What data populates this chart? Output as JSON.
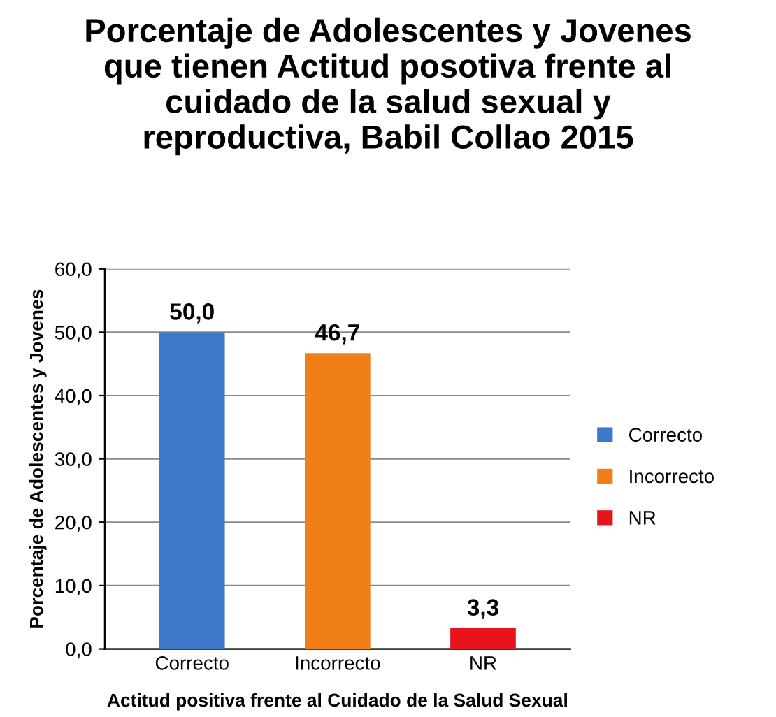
{
  "chart_data": {
    "type": "bar",
    "title": "Porcentaje de Adolescentes y Jovenes\nque tienen Actitud posotiva frente al\ncuidado de la salud sexual y\nreproductiva, Babil Collao 2015",
    "xlabel": "Actitud positiva frente al Cuidado de la Salud Sexual",
    "ylabel": "Porcentaje de Adolescentes y Jovenes",
    "categories": [
      "Correcto",
      "Incorrecto",
      "NR"
    ],
    "series": [
      {
        "name": "Correcto",
        "color": "#3f78c8",
        "values": [
          50.0,
          null,
          null
        ],
        "value_labels": [
          "50,0",
          null,
          null
        ]
      },
      {
        "name": "Incorrecto",
        "color": "#f07f18",
        "values": [
          null,
          46.7,
          null
        ],
        "value_labels": [
          null,
          "46,7",
          null
        ]
      },
      {
        "name": "NR",
        "color": "#e8141c",
        "values": [
          null,
          null,
          3.3
        ],
        "value_labels": [
          null,
          null,
          "3,3"
        ]
      }
    ],
    "ylim": [
      0,
      60
    ],
    "yticks": [
      {
        "value": 0,
        "label": "0,0"
      },
      {
        "value": 10,
        "label": "10,0"
      },
      {
        "value": 20,
        "label": "20,0"
      },
      {
        "value": 30,
        "label": "30,0"
      },
      {
        "value": 40,
        "label": "40,0"
      },
      {
        "value": 50,
        "label": "50,0"
      },
      {
        "value": 60,
        "label": "60,0"
      }
    ],
    "grid": "y",
    "legend": "right"
  }
}
